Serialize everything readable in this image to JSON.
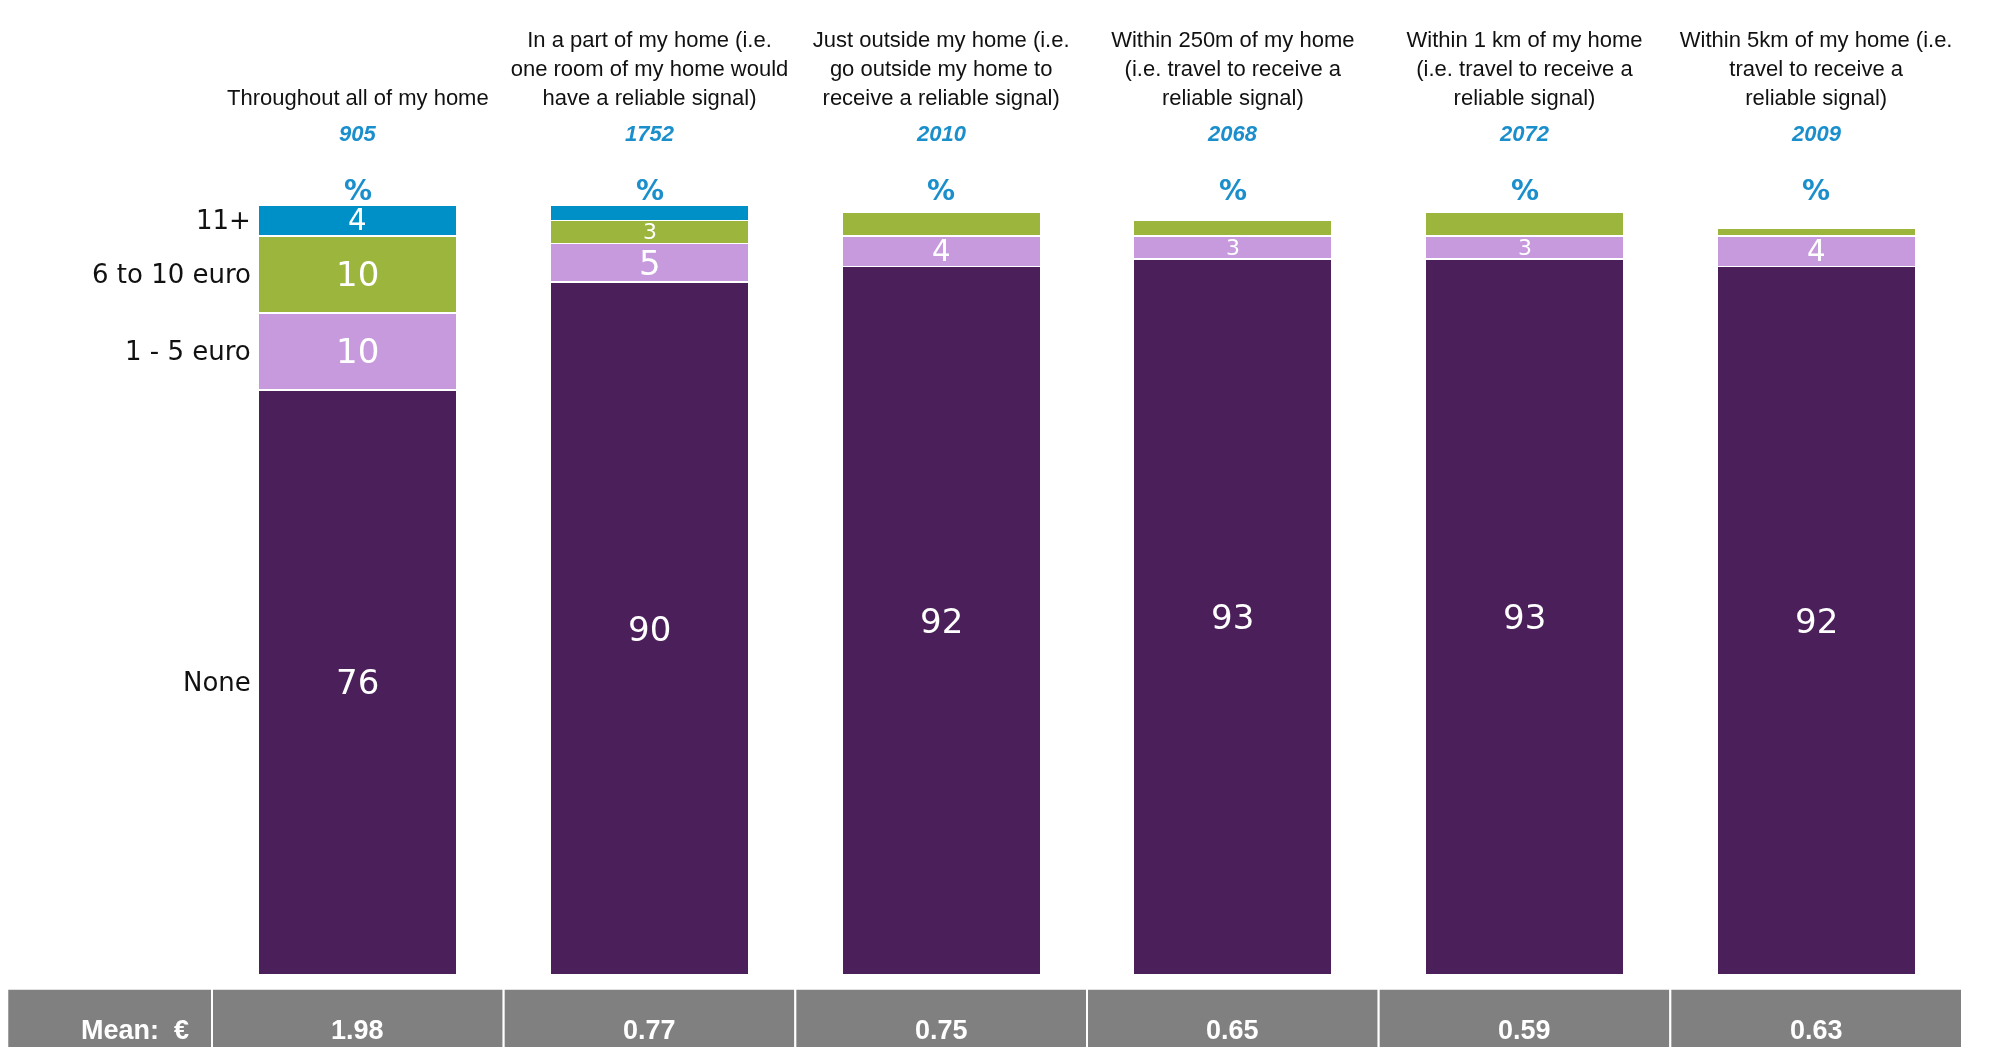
{
  "chart_data": {
    "type": "bar",
    "stacked": true,
    "categories": [
      "Throughout all of my home",
      "In a part of my home (i.e. one room of my home would have a reliable signal)",
      "Just outside my home (i.e. go outside my home to receive a reliable signal)",
      "Within 250m of my home (i.e. travel to receive a reliable signal)",
      "Within 1 km of my home (i.e. travel to receive a reliable signal)",
      "Within 5km of my home (i.e. travel to receive a reliable signal)"
    ],
    "series": [
      {
        "name": "None",
        "color": "#4b1f5a",
        "values": [
          76,
          90,
          92,
          93,
          93,
          92
        ],
        "value_labels": [
          "76",
          "90",
          "92",
          "93",
          "93",
          "92"
        ]
      },
      {
        "name": "1 - 5 euro",
        "color": "#c79ade",
        "values": [
          10,
          5,
          4,
          3,
          3,
          4
        ],
        "value_labels": [
          "10",
          "5",
          "4",
          "3",
          "3",
          "4"
        ]
      },
      {
        "name": "6 to 10 euro",
        "color": "#9bb53d",
        "values": [
          10,
          3,
          3,
          2,
          3,
          1
        ],
        "value_labels": [
          "10",
          "3",
          null,
          null,
          null,
          null
        ]
      },
      {
        "name": "11+",
        "color": "#0090c8",
        "values": [
          4,
          2,
          null,
          null,
          null,
          null
        ],
        "value_labels": [
          "4",
          null,
          null,
          null,
          null,
          null
        ]
      }
    ],
    "ylim": [
      0,
      100
    ],
    "tick_labels": "x",
    "grid": false,
    "legend": false,
    "annotations": [
      "905",
      "1752",
      "2010",
      "2068",
      "2072",
      "2009",
      "%",
      "%",
      "%",
      "%",
      "%",
      "%",
      "Mean:  €",
      "1.98",
      "0.77",
      "0.75",
      "0.65",
      "0.59",
      "0.63"
    ]
  }
}
